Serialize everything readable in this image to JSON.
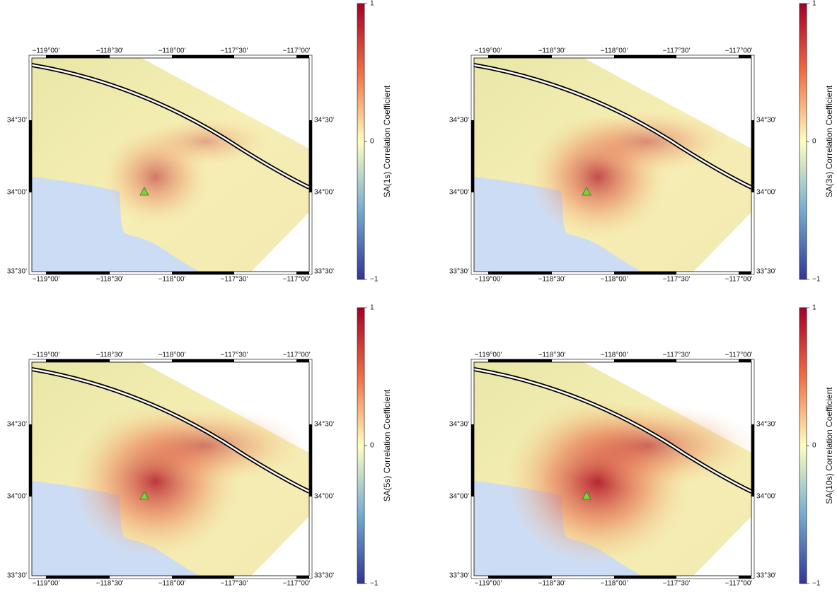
{
  "lon_labels": [
    "−119°00'",
    "−118°30'",
    "−118°00'",
    "−117°30'",
    "−117°00'"
  ],
  "lat_labels": [
    "34°30'",
    "34°00'",
    "33°30'"
  ],
  "colorbar_ticks": [
    "1",
    "0",
    "−1"
  ],
  "panels": [
    {
      "colorbar_label": "SA(1s) Correlation Coefficient"
    },
    {
      "colorbar_label": "SA(3s) Correlation Coefficient"
    },
    {
      "colorbar_label": "SA(5s) Correlation Coefficient"
    },
    {
      "colorbar_label": "SA(10s) Correlation Coefficient"
    }
  ]
}
